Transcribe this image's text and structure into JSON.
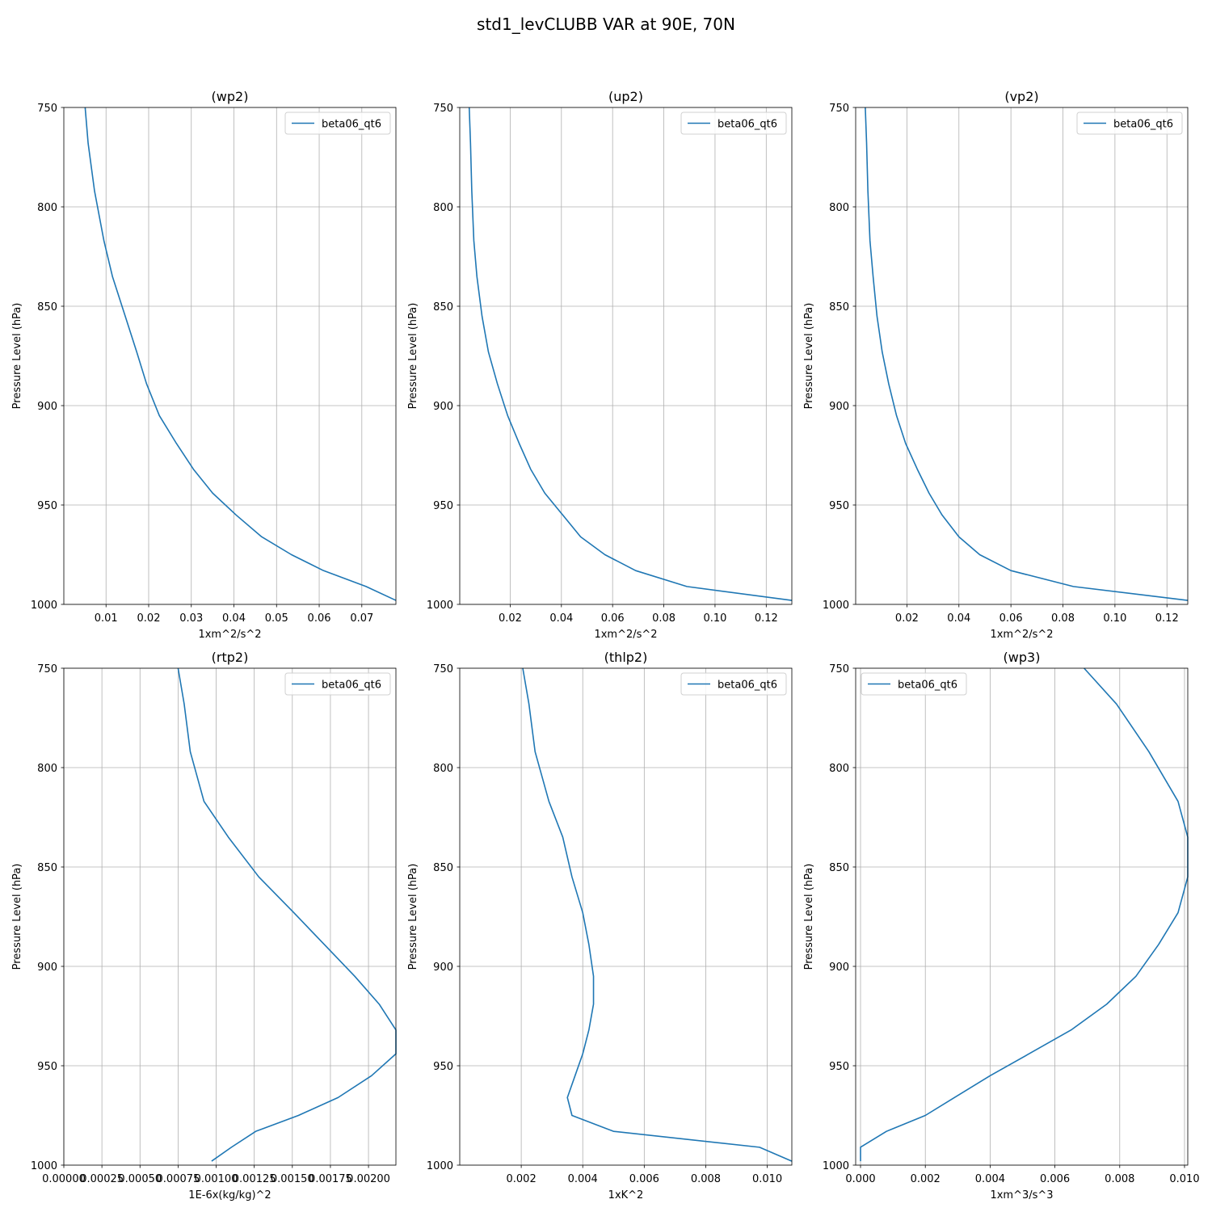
{
  "figure_title": "std1_levCLUBB VAR at 90E, 70N",
  "colors": {
    "line": "#1f77b4",
    "grid": "#b0b0b0",
    "axes": "#000000"
  },
  "chart_data": [
    {
      "type": "line",
      "title": "(wp2)",
      "xlabel": "1xm^2/s^2",
      "ylabel": "Pressure Level (hPa)",
      "y_inverted": true,
      "ylim": [
        750,
        1000
      ],
      "xlim": [
        0.0001,
        0.078
      ],
      "xticks": [
        0.01,
        0.02,
        0.03,
        0.04,
        0.05,
        0.06,
        0.07
      ],
      "xtick_labels": [
        "0.01",
        "0.02",
        "0.03",
        "0.04",
        "0.05",
        "0.06",
        "0.07"
      ],
      "yticks": [
        750,
        800,
        850,
        900,
        950,
        1000
      ],
      "grid": true,
      "legend_position": "top-right",
      "series": [
        {
          "name": "beta06_qt6",
          "points": [
            [
              0.0051,
              750
            ],
            [
              0.0058,
              768
            ],
            [
              0.0073,
              792
            ],
            [
              0.0095,
              817
            ],
            [
              0.0115,
              835
            ],
            [
              0.0145,
              855
            ],
            [
              0.0172,
              873
            ],
            [
              0.0195,
              889
            ],
            [
              0.0225,
              905
            ],
            [
              0.0265,
              919
            ],
            [
              0.0305,
              932
            ],
            [
              0.035,
              944
            ],
            [
              0.0405,
              955
            ],
            [
              0.0465,
              966
            ],
            [
              0.0535,
              975
            ],
            [
              0.061,
              983
            ],
            [
              0.071,
              991
            ],
            [
              0.078,
              998
            ]
          ]
        }
      ]
    },
    {
      "type": "line",
      "title": "(up2)",
      "xlabel": "1xm^2/s^2",
      "ylabel": "Pressure Level (hPa)",
      "y_inverted": true,
      "ylim": [
        750,
        1000
      ],
      "xlim": [
        0.0003,
        0.13
      ],
      "xticks": [
        0.02,
        0.04,
        0.06,
        0.08,
        0.1,
        0.12
      ],
      "xtick_labels": [
        "0.02",
        "0.04",
        "0.06",
        "0.08",
        "0.10",
        "0.12"
      ],
      "yticks": [
        750,
        800,
        850,
        900,
        950,
        1000
      ],
      "grid": true,
      "legend_position": "top-right",
      "series": [
        {
          "name": "beta06_qt6",
          "points": [
            [
              0.004,
              750
            ],
            [
              0.0045,
              768
            ],
            [
              0.005,
              792
            ],
            [
              0.0058,
              817
            ],
            [
              0.007,
              835
            ],
            [
              0.009,
              855
            ],
            [
              0.0115,
              873
            ],
            [
              0.015,
              889
            ],
            [
              0.019,
              905
            ],
            [
              0.0235,
              919
            ],
            [
              0.028,
              932
            ],
            [
              0.0335,
              944
            ],
            [
              0.0405,
              955
            ],
            [
              0.0475,
              966
            ],
            [
              0.057,
              975
            ],
            [
              0.069,
              983
            ],
            [
              0.089,
              991
            ],
            [
              0.13,
              998
            ]
          ]
        }
      ]
    },
    {
      "type": "line",
      "title": "(vp2)",
      "xlabel": "1xm^2/s^2",
      "ylabel": "Pressure Level (hPa)",
      "y_inverted": true,
      "ylim": [
        750,
        1000
      ],
      "xlim": [
        0.0003,
        0.128
      ],
      "xticks": [
        0.02,
        0.04,
        0.06,
        0.08,
        0.1,
        0.12
      ],
      "xtick_labels": [
        "0.02",
        "0.04",
        "0.06",
        "0.08",
        "0.10",
        "0.12"
      ],
      "yticks": [
        750,
        800,
        850,
        900,
        950,
        1000
      ],
      "grid": true,
      "legend_position": "top-right",
      "series": [
        {
          "name": "beta06_qt6",
          "points": [
            [
              0.004,
              750
            ],
            [
              0.0045,
              768
            ],
            [
              0.005,
              792
            ],
            [
              0.0058,
              817
            ],
            [
              0.007,
              835
            ],
            [
              0.0085,
              855
            ],
            [
              0.0105,
              873
            ],
            [
              0.013,
              889
            ],
            [
              0.016,
              905
            ],
            [
              0.0195,
              919
            ],
            [
              0.024,
              932
            ],
            [
              0.0285,
              944
            ],
            [
              0.0335,
              955
            ],
            [
              0.04,
              966
            ],
            [
              0.048,
              975
            ],
            [
              0.06,
              983
            ],
            [
              0.084,
              991
            ],
            [
              0.128,
              998
            ]
          ]
        }
      ]
    },
    {
      "type": "line",
      "title": "(rtp2)",
      "xlabel": "1E-6x(kg/kg)^2",
      "ylabel": "Pressure Level (hPa)",
      "y_inverted": true,
      "ylim": [
        750,
        1000
      ],
      "xlim": [
        0.0,
        0.00218
      ],
      "xticks": [
        0.0,
        0.00025,
        0.0005,
        0.00075,
        0.001,
        0.00125,
        0.0015,
        0.00175,
        0.002
      ],
      "xtick_labels": [
        "0.00000",
        "0.00025",
        "0.00050",
        "0.00075",
        "0.00100",
        "0.00125",
        "0.00150",
        "0.00175",
        "0.00200"
      ],
      "yticks": [
        750,
        800,
        850,
        900,
        950,
        1000
      ],
      "grid": true,
      "legend_position": "top-right",
      "series": [
        {
          "name": "beta06_qt6",
          "points": [
            [
              0.00075,
              750
            ],
            [
              0.00079,
              768
            ],
            [
              0.00083,
              792
            ],
            [
              0.00092,
              817
            ],
            [
              0.00108,
              835
            ],
            [
              0.00128,
              855
            ],
            [
              0.00151,
              873
            ],
            [
              0.00171,
              889
            ],
            [
              0.00191,
              905
            ],
            [
              0.00207,
              919
            ],
            [
              0.00218,
              932
            ],
            [
              0.00218,
              944
            ],
            [
              0.00202,
              955
            ],
            [
              0.0018,
              966
            ],
            [
              0.00154,
              975
            ],
            [
              0.00126,
              983
            ],
            [
              0.0011,
              991
            ],
            [
              0.00097,
              998
            ]
          ]
        }
      ]
    },
    {
      "type": "line",
      "title": "(thlp2)",
      "xlabel": "1xK^2",
      "ylabel": "Pressure Level (hPa)",
      "y_inverted": true,
      "ylim": [
        750,
        1000
      ],
      "xlim": [
        0.0,
        0.0108
      ],
      "xticks": [
        0.002,
        0.004,
        0.006,
        0.008,
        0.01
      ],
      "xtick_labels": [
        "0.002",
        "0.004",
        "0.006",
        "0.008",
        "0.010"
      ],
      "yticks": [
        750,
        800,
        850,
        900,
        950,
        1000
      ],
      "grid": true,
      "legend_position": "top-right",
      "series": [
        {
          "name": "beta06_qt6",
          "points": [
            [
              0.00205,
              750
            ],
            [
              0.00225,
              768
            ],
            [
              0.00245,
              792
            ],
            [
              0.0029,
              817
            ],
            [
              0.00335,
              835
            ],
            [
              0.00365,
              855
            ],
            [
              0.004,
              873
            ],
            [
              0.0042,
              889
            ],
            [
              0.00435,
              905
            ],
            [
              0.00435,
              919
            ],
            [
              0.0042,
              932
            ],
            [
              0.004,
              944
            ],
            [
              0.00375,
              955
            ],
            [
              0.0035,
              966
            ],
            [
              0.00365,
              975
            ],
            [
              0.005,
              983
            ],
            [
              0.00975,
              991
            ],
            [
              0.0108,
              998
            ]
          ]
        }
      ]
    },
    {
      "type": "line",
      "title": "(wp3)",
      "xlabel": "1xm^3/s^3",
      "ylabel": "Pressure Level (hPa)",
      "y_inverted": true,
      "ylim": [
        750,
        1000
      ],
      "xlim": [
        -0.00015,
        0.0101
      ],
      "xticks": [
        0.0,
        0.002,
        0.004,
        0.006,
        0.008,
        0.01
      ],
      "xtick_labels": [
        "0.000",
        "0.002",
        "0.004",
        "0.006",
        "0.008",
        "0.010"
      ],
      "yticks": [
        750,
        800,
        850,
        900,
        950,
        1000
      ],
      "grid": true,
      "legend_position": "top-left",
      "series": [
        {
          "name": "beta06_qt6",
          "points": [
            [
              0.0069,
              750
            ],
            [
              0.0079,
              768
            ],
            [
              0.0089,
              792
            ],
            [
              0.0098,
              817
            ],
            [
              0.0101,
              835
            ],
            [
              0.0101,
              855
            ],
            [
              0.0098,
              873
            ],
            [
              0.0092,
              889
            ],
            [
              0.0085,
              905
            ],
            [
              0.0076,
              919
            ],
            [
              0.0065,
              932
            ],
            [
              0.0052,
              944
            ],
            [
              0.004,
              955
            ],
            [
              0.0029,
              966
            ],
            [
              0.002,
              975
            ],
            [
              0.0008,
              983
            ],
            [
              0.0,
              991
            ],
            [
              0.0,
              998
            ]
          ]
        }
      ]
    }
  ]
}
